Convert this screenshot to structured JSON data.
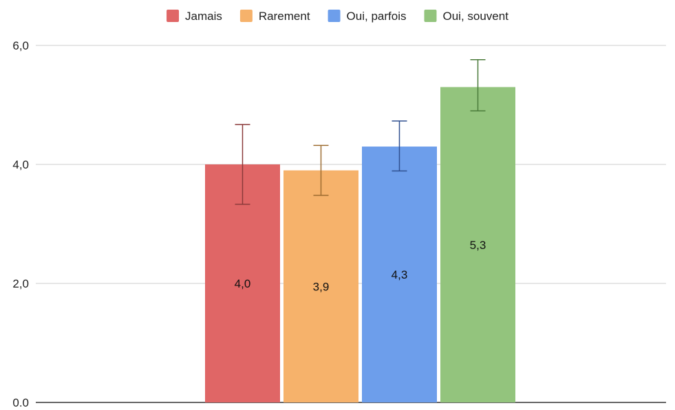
{
  "chart_data": {
    "type": "bar",
    "title": "",
    "xlabel": "",
    "ylabel": "",
    "ylim": [
      0,
      6
    ],
    "y_ticks": [
      {
        "value": 0,
        "label": "0,0"
      },
      {
        "value": 2,
        "label": "2,0"
      },
      {
        "value": 4,
        "label": "4,0"
      },
      {
        "value": 6,
        "label": "6,0"
      }
    ],
    "grid": true,
    "legend_position": "top",
    "series": [
      {
        "name": "Jamais",
        "value": 4.0,
        "label": "4,0",
        "error_low": 3.33,
        "error_high": 4.67,
        "color": "#e06666",
        "error_color": "#8b3a3a"
      },
      {
        "name": "Rarement",
        "value": 3.9,
        "label": "3,9",
        "error_low": 3.48,
        "error_high": 4.32,
        "color": "#f6b26b",
        "error_color": "#9c6b2f"
      },
      {
        "name": "Oui, parfois",
        "value": 4.3,
        "label": "4,3",
        "error_low": 3.89,
        "error_high": 4.73,
        "color": "#6d9eeb",
        "error_color": "#2f4f8f"
      },
      {
        "name": "Oui, souvent",
        "value": 5.3,
        "label": "5,3",
        "error_low": 4.9,
        "error_high": 5.76,
        "color": "#93c47d",
        "error_color": "#4a7a3a"
      }
    ]
  }
}
